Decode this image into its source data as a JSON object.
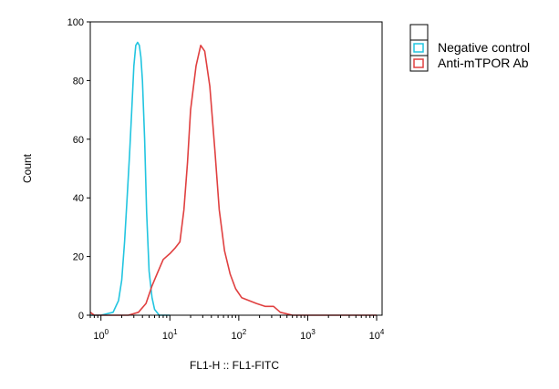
{
  "chart_data": {
    "type": "line",
    "xlabel": "FL1-H :: FL1-FITC",
    "ylabel": "Count",
    "xscale": "log",
    "xlim": [
      0.7,
      12000
    ],
    "ylim": [
      0,
      100
    ],
    "x_ticks": [
      {
        "value": 1,
        "base": "10",
        "exp": "0"
      },
      {
        "value": 10,
        "base": "10",
        "exp": "1"
      },
      {
        "value": 100,
        "base": "10",
        "exp": "2"
      },
      {
        "value": 1000,
        "base": "10",
        "exp": "3"
      },
      {
        "value": 10000,
        "base": "10",
        "exp": "4"
      }
    ],
    "y_ticks": [
      {
        "value": 0,
        "label": "0"
      },
      {
        "value": 20,
        "label": "20"
      },
      {
        "value": 40,
        "label": "40"
      },
      {
        "value": 60,
        "label": "60"
      },
      {
        "value": 80,
        "label": "80"
      },
      {
        "value": 100,
        "label": "100"
      }
    ],
    "grid": false,
    "legend_position": "top-right",
    "series": [
      {
        "name": "Negative control",
        "color": "#22c5e0",
        "points": [
          [
            0.7,
            0
          ],
          [
            1.0,
            0
          ],
          [
            1.5,
            1
          ],
          [
            1.8,
            5
          ],
          [
            2.0,
            12
          ],
          [
            2.2,
            25
          ],
          [
            2.4,
            40
          ],
          [
            2.6,
            55
          ],
          [
            2.8,
            70
          ],
          [
            3.0,
            85
          ],
          [
            3.2,
            92
          ],
          [
            3.4,
            93
          ],
          [
            3.6,
            92
          ],
          [
            3.8,
            88
          ],
          [
            4.0,
            80
          ],
          [
            4.3,
            60
          ],
          [
            4.6,
            35
          ],
          [
            5.0,
            15
          ],
          [
            5.5,
            6
          ],
          [
            6.0,
            2
          ],
          [
            7.0,
            0
          ],
          [
            10.0,
            0
          ]
        ]
      },
      {
        "name": "Anti-mTPOR Ab",
        "color": "#e04040",
        "points": [
          [
            0.7,
            1
          ],
          [
            0.8,
            0
          ],
          [
            1.0,
            0
          ],
          [
            2.5,
            0
          ],
          [
            3.5,
            1
          ],
          [
            4.5,
            4
          ],
          [
            5.5,
            10
          ],
          [
            6.5,
            14
          ],
          [
            8.0,
            19
          ],
          [
            10.0,
            21
          ],
          [
            12.0,
            23
          ],
          [
            14.0,
            25
          ],
          [
            16.0,
            36
          ],
          [
            18.0,
            52
          ],
          [
            20.0,
            70
          ],
          [
            24.0,
            85
          ],
          [
            28.0,
            92
          ],
          [
            32.0,
            90
          ],
          [
            38.0,
            78
          ],
          [
            45.0,
            56
          ],
          [
            52.0,
            36
          ],
          [
            62.0,
            22
          ],
          [
            75.0,
            14
          ],
          [
            90.0,
            9
          ],
          [
            110.0,
            6
          ],
          [
            140.0,
            5
          ],
          [
            180.0,
            4
          ],
          [
            240.0,
            3
          ],
          [
            320.0,
            3
          ],
          [
            400.0,
            1
          ],
          [
            600.0,
            0
          ],
          [
            10000.0,
            0
          ]
        ]
      }
    ]
  }
}
